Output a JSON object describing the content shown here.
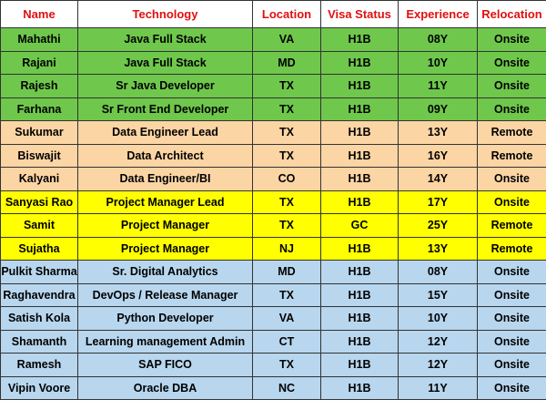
{
  "table": {
    "header": [
      "Name",
      "Technology",
      "Location",
      "Visa Status",
      "Experience",
      "Relocation"
    ],
    "rows": [
      [
        "Mahathi",
        "Java Full Stack",
        "VA",
        "H1B",
        "08Y",
        "Onsite"
      ],
      [
        "Rajani",
        "Java Full Stack",
        "MD",
        "H1B",
        "10Y",
        "Onsite"
      ],
      [
        "Rajesh",
        "Sr Java Developer",
        "TX",
        "H1B",
        "11Y",
        "Onsite"
      ],
      [
        "Farhana",
        "Sr Front End Developer",
        "TX",
        "H1B",
        "09Y",
        "Onsite"
      ],
      [
        "Sukumar",
        "Data Engineer Lead",
        "TX",
        "H1B",
        "13Y",
        "Remote"
      ],
      [
        "Biswajit",
        "Data Architect",
        "TX",
        "H1B",
        "16Y",
        "Remote"
      ],
      [
        "Kalyani",
        "Data Engineer/BI",
        "CO",
        "H1B",
        "14Y",
        "Onsite"
      ],
      [
        "Sanyasi Rao",
        "Project Manager Lead",
        "TX",
        "H1B",
        "17Y",
        "Onsite"
      ],
      [
        "Samit",
        "Project Manager",
        "TX",
        "GC",
        "25Y",
        "Remote"
      ],
      [
        "Sujatha",
        "Project Manager",
        "NJ",
        "H1B",
        "13Y",
        "Remote"
      ],
      [
        "Pulkit Sharma",
        "Sr. Digital Analytics",
        "MD",
        "H1B",
        "08Y",
        "Onsite"
      ],
      [
        "Raghavendra",
        "DevOps / Release Manager",
        "TX",
        "H1B",
        "15Y",
        "Onsite"
      ],
      [
        "Satish Kola",
        "Python Developer",
        "VA",
        "H1B",
        "10Y",
        "Onsite"
      ],
      [
        "Shamanth",
        "Learning management Admin",
        "CT",
        "H1B",
        "12Y",
        "Onsite"
      ],
      [
        "Ramesh",
        "SAP FICO",
        "TX",
        "H1B",
        "12Y",
        "Onsite"
      ],
      [
        "Vipin Voore",
        "Oracle DBA",
        "NC",
        "H1B",
        "11Y",
        "Onsite"
      ]
    ],
    "row_colors": [
      "#6fc84c",
      "#6fc84c",
      "#6fc84c",
      "#6fc84c",
      "#fcd5a4",
      "#fcd5a4",
      "#fcd5a4",
      "#ffff00",
      "#ffff00",
      "#ffff00",
      "#b8d6ee",
      "#b8d6ee",
      "#b8d6ee",
      "#b8d6ee",
      "#b8d6ee",
      "#b8d6ee"
    ]
  }
}
